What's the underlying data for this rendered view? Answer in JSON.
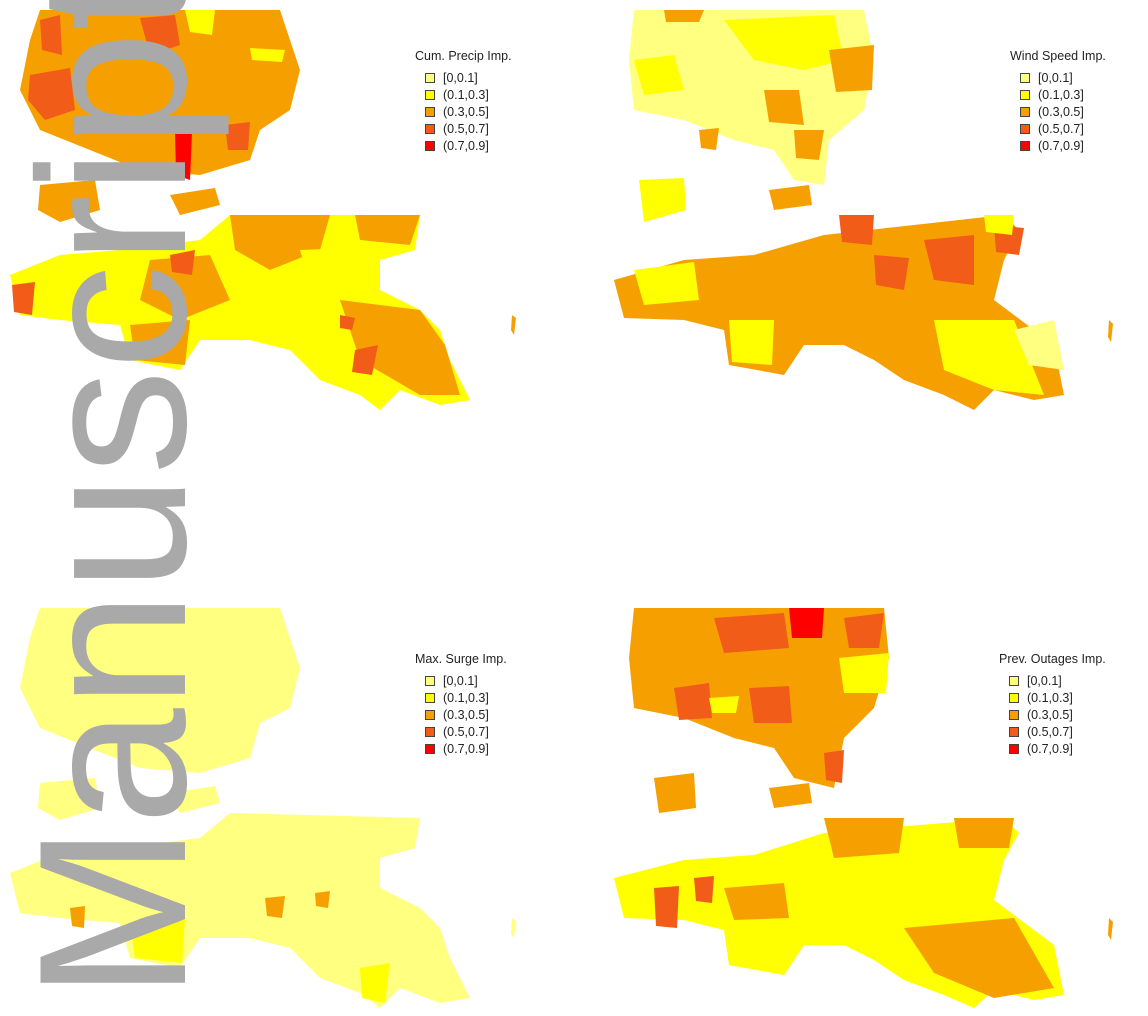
{
  "legend_classes": [
    "[0,0.1]",
    "(0.1,0.3]",
    "(0.3,0.5]",
    "(0.5,0.7]",
    "(0.7,0.9]"
  ],
  "colors": {
    "c0": "#ffff80",
    "c1": "#ffff00",
    "c2": "#f5a000",
    "c3": "#f25c19",
    "c4": "#ff0000",
    "watermark": "#a9a9a9"
  },
  "panels": [
    {
      "title": "Cum. Precip Imp.",
      "dominant_class": 2
    },
    {
      "title": "Wind Speed Imp.",
      "dominant_class": 1
    },
    {
      "title": "Max. Surge Imp.",
      "dominant_class": 0
    },
    {
      "title": "Prev. Outages Imp.",
      "dominant_class": 2
    }
  ],
  "watermark_text": "Manuscript"
}
